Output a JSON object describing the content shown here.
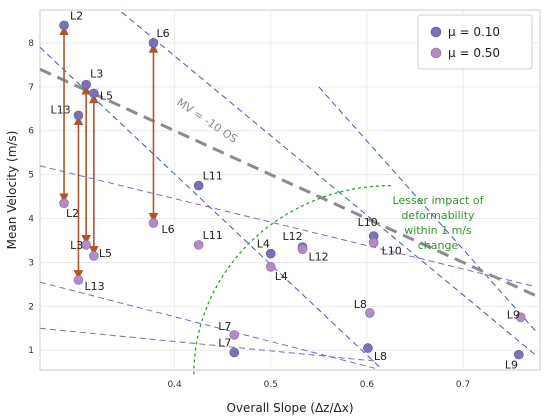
{
  "chart_data": {
    "type": "scatter",
    "xlabel": "Overall Slope (Δz/Δx)",
    "ylabel": "Mean Velocity (m/s)",
    "xlim": [
      0.26,
      0.78
    ],
    "ylim": [
      0.55,
      8.75
    ],
    "xticks": [
      "0.4",
      "0.5",
      "0.6",
      "0.7"
    ],
    "xtick_values": [
      0.4,
      0.5,
      0.6,
      0.7
    ],
    "yticks": [
      "1",
      "2",
      "3",
      "4",
      "5",
      "6",
      "7",
      "8"
    ],
    "ytick_values": [
      1,
      2,
      3,
      4,
      5,
      6,
      7,
      8
    ],
    "grid": true,
    "legend": {
      "position": "top-right",
      "entries": [
        {
          "label": "μ = 0.10",
          "color": "#7a72b8"
        },
        {
          "label": "μ = 0.50",
          "color": "#b28cc4"
        }
      ]
    },
    "series": [
      {
        "name": "μ = 0.10",
        "color": "#7a72b8",
        "points": [
          {
            "label": "L2",
            "x": 0.285,
            "y": 8.4
          },
          {
            "label": "L3",
            "x": 0.308,
            "y": 7.05
          },
          {
            "label": "L5",
            "x": 0.316,
            "y": 6.85
          },
          {
            "label": "L13",
            "x": 0.3,
            "y": 6.35
          },
          {
            "label": "L6",
            "x": 0.378,
            "y": 8.0
          },
          {
            "label": "L11",
            "x": 0.425,
            "y": 4.75
          },
          {
            "label": "L4",
            "x": 0.5,
            "y": 3.2
          },
          {
            "label": "L12",
            "x": 0.533,
            "y": 3.35
          },
          {
            "label": "L10",
            "x": 0.607,
            "y": 3.6
          },
          {
            "label": "L8",
            "x": 0.601,
            "y": 1.05
          },
          {
            "label": "L7",
            "x": 0.462,
            "y": 0.95
          },
          {
            "label": "L9",
            "x": 0.758,
            "y": 0.9
          }
        ]
      },
      {
        "name": "μ = 0.50",
        "color": "#b28cc4",
        "points": [
          {
            "label": "L2",
            "x": 0.285,
            "y": 4.35
          },
          {
            "label": "L3",
            "x": 0.308,
            "y": 3.4
          },
          {
            "label": "L5",
            "x": 0.316,
            "y": 3.15
          },
          {
            "label": "L13",
            "x": 0.3,
            "y": 2.6
          },
          {
            "label": "L6",
            "x": 0.378,
            "y": 3.9
          },
          {
            "label": "L11",
            "x": 0.425,
            "y": 3.4
          },
          {
            "label": "L4",
            "x": 0.5,
            "y": 2.9
          },
          {
            "label": "L12",
            "x": 0.533,
            "y": 3.3
          },
          {
            "label": "L10",
            "x": 0.607,
            "y": 3.45
          },
          {
            "label": "L8",
            "x": 0.603,
            "y": 1.85
          },
          {
            "label": "L7",
            "x": 0.462,
            "y": 1.35
          },
          {
            "label": "L9",
            "x": 0.76,
            "y": 1.75
          }
        ]
      }
    ],
    "arrows": [
      {
        "x": 0.285,
        "y1": 8.35,
        "y2": 4.4
      },
      {
        "x": 0.3,
        "y1": 6.3,
        "y2": 2.65
      },
      {
        "x": 0.308,
        "y1": 7.0,
        "y2": 3.45
      },
      {
        "x": 0.316,
        "y1": 6.8,
        "y2": 3.2
      },
      {
        "x": 0.378,
        "y1": 7.95,
        "y2": 3.95
      }
    ],
    "reference_line": {
      "label": "MV = -10 OS",
      "slope": -10,
      "intercept": 10
    },
    "annotation": {
      "text": [
        "Lesser impact of",
        "deformability",
        "within 1 m/s",
        "change"
      ]
    }
  }
}
